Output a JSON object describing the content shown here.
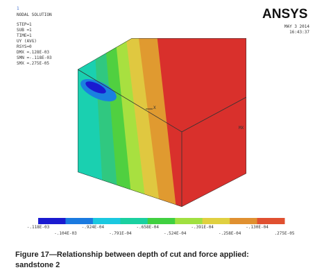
{
  "plot_header": {
    "window_number": "1",
    "title": "NODAL SOLUTION",
    "lines": [
      "STEP=1",
      "SUB =1",
      "TIME=1",
      "UY       (AVG)",
      "RSYS=0",
      "DMX =.128E-03",
      "SMN =-.118E-03",
      "SMX =.275E-05"
    ]
  },
  "logo": "ANSYS",
  "date": "MAY  3 2014",
  "time": "16:43:37",
  "markers": {
    "max": "MX",
    "axis": "X"
  },
  "legend": {
    "colors": [
      "#1a1ad0",
      "#1a7ae0",
      "#1ac8e0",
      "#1ad0a0",
      "#40d040",
      "#a0e040",
      "#e0d040",
      "#e09030",
      "#e05030",
      "#d81e2a"
    ],
    "labels": [
      "-.118E-03",
      "-.104E-03",
      "-.924E-04",
      "-.791E-04",
      "-.658E-04",
      "-.524E-04",
      "-.391E-04",
      "-.258E-04",
      "-.130E-04",
      ".275E-05"
    ]
  },
  "caption": [
    "Figure 17—Relationship between depth of cut and force applied:",
    "sandstone 2"
  ]
}
